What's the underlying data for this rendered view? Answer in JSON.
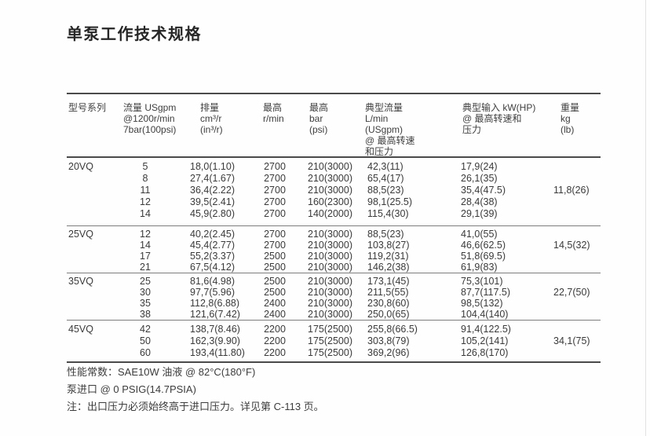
{
  "page": {
    "title": "单泵工作技术规格"
  },
  "table": {
    "headers": {
      "model": "型号系列",
      "flow": "流量 USgpm\n@1200r/min\n7bar(100psi)",
      "displacement": "排量\ncm³/r\n(in³/r)",
      "max_speed": "最高\nr/min",
      "max_pressure": "最高\nbar\n(psi)",
      "typical_flow": "典型流量\nL/min\n(USgpm)\n@ 最高转速\n和压力",
      "typical_input": "典型输入 kW(HP)\n@ 最高转速和\n压力",
      "weight": "重量\nkg\n(lb)"
    },
    "groups": [
      {
        "model": "20VQ",
        "weight": "11,8(26)",
        "rows": [
          [
            "5",
            "18,0(1.10)",
            "2700",
            "210(3000)",
            "42,3(11)",
            "17,9(24)"
          ],
          [
            "8",
            "27,4(1.67)",
            "2700",
            "210(3000)",
            "65,4(17)",
            "26,1(35)"
          ],
          [
            "11",
            "36,4(2.22)",
            "2700",
            "210(3000)",
            "88,5(23)",
            "35,4(47.5)"
          ],
          [
            "12",
            "39,5(2.41)",
            "2700",
            "160(2300)",
            "98,1(25.5)",
            "28,4(38)"
          ],
          [
            "14",
            "45,9(2.80)",
            "2700",
            "140(2000)",
            "115,4(30)",
            "29,1(39)"
          ]
        ]
      },
      {
        "model": "25VQ",
        "weight": "14,5(32)",
        "rows": [
          [
            "12",
            "40,2(2.45)",
            "2700",
            "210(3000)",
            "88,5(23)",
            "41,0(55)"
          ],
          [
            "14",
            "45,4(2.77)",
            "2700",
            "210(3000)",
            "103,8(27)",
            "46,6(62.5)"
          ],
          [
            "17",
            "55,2(3.37)",
            "2500",
            "210(3000)",
            "119,2(31)",
            "51,8(69.5)"
          ],
          [
            "21",
            "67,5(4.12)",
            "2500",
            "210(3000)",
            "146,2(38)",
            "61,9(83)"
          ]
        ]
      },
      {
        "model": "35VQ",
        "weight": "22,7(50)",
        "rows": [
          [
            "25",
            "81,6(4.98)",
            "2500",
            "210(3000)",
            "173,1(45)",
            "75,3(101)"
          ],
          [
            "30",
            "97,7(5.96)",
            "2500",
            "210(3000)",
            "211,5(55)",
            "87,7(117.5)"
          ],
          [
            "35",
            "112,8(6.88)",
            "2400",
            "210(3000)",
            "230,8(60)",
            "98,5(132)"
          ],
          [
            "38",
            "121,6(7.42)",
            "2400",
            "210(3000)",
            "250,0(65)",
            "104,4(140)"
          ]
        ]
      },
      {
        "model": "45VQ",
        "weight": "34,1(75)",
        "rows": [
          [
            "42",
            "138,7(8.46)",
            "2200",
            "175(2500)",
            "255,8(66.5)",
            "91,4(122.5)"
          ],
          [
            "50",
            "162,3(9.90)",
            "2200",
            "175(2500)",
            "303,8(79)",
            "105,2(141)"
          ],
          [
            "60",
            "193,4(11.80)",
            "2200",
            "175(2500)",
            "369,2(96)",
            "126,8(170)"
          ]
        ]
      }
    ]
  },
  "footer": {
    "line1": "性能常数：SAE10W 油液 @ 82°C(180°F)",
    "line2": "泵进口 @ 0 PSIG(14.7PSIA)",
    "line3": "注：出口压力必须始终高于进口压力。详见第 C-113 页。"
  }
}
